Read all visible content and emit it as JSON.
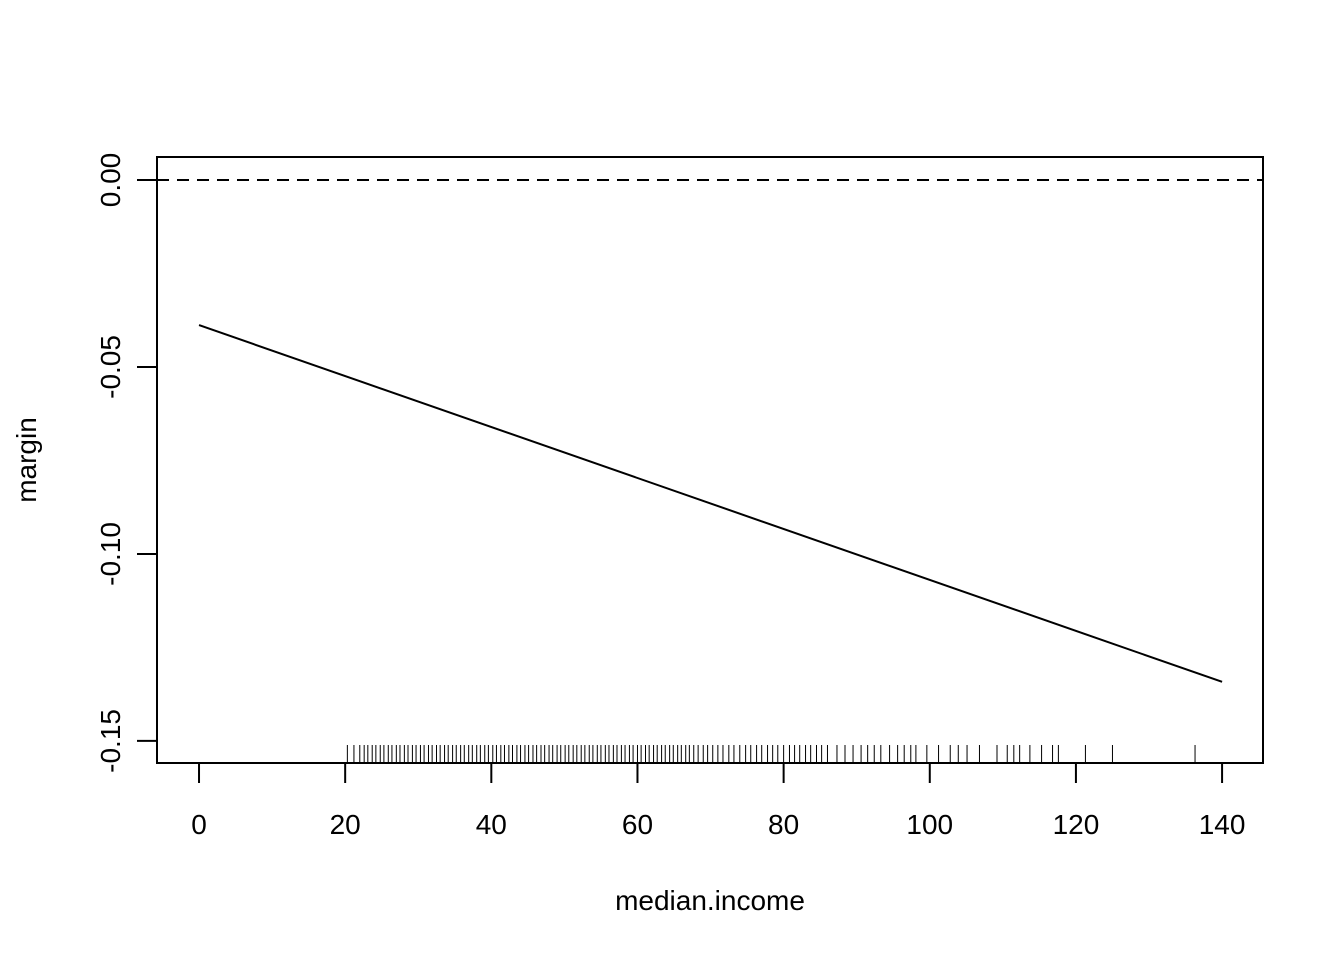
{
  "chart_data": {
    "type": "line",
    "xlabel": "median.income",
    "ylabel": "margin",
    "x": [
      0,
      140
    ],
    "series": [
      {
        "color": "#000000",
        "values": [
          -0.0388,
          -0.1342
        ]
      }
    ],
    "hline": 0,
    "rug": [
      20.3,
      21.2,
      22.0,
      22.6,
      23.1,
      23.7,
      24.2,
      24.8,
      25.3,
      25.9,
      26.4,
      27.0,
      27.5,
      28.1,
      28.6,
      29.2,
      29.7,
      30.3,
      30.8,
      31.4,
      31.9,
      32.5,
      33.0,
      33.6,
      34.1,
      34.7,
      35.2,
      35.8,
      36.3,
      36.9,
      37.4,
      38.0,
      38.5,
      39.1,
      39.6,
      40.2,
      40.7,
      41.3,
      41.8,
      42.4,
      42.9,
      43.5,
      44.0,
      44.6,
      45.1,
      45.7,
      46.2,
      46.8,
      47.3,
      47.9,
      48.4,
      49.0,
      49.5,
      50.1,
      50.6,
      51.2,
      51.7,
      52.3,
      52.8,
      53.4,
      53.9,
      54.5,
      55.0,
      55.6,
      56.1,
      56.7,
      57.2,
      57.8,
      58.3,
      58.9,
      59.4,
      60.0,
      60.5,
      61.1,
      61.6,
      62.2,
      62.7,
      63.3,
      63.8,
      64.4,
      64.9,
      65.5,
      66.0,
      66.6,
      67.1,
      67.7,
      68.3,
      69.0,
      69.6,
      70.3,
      71.0,
      71.7,
      72.5,
      73.2,
      74.0,
      74.8,
      75.5,
      76.3,
      77.0,
      77.8,
      78.5,
      79.2,
      80.0,
      80.8,
      81.5,
      82.2,
      83.0,
      83.7,
      84.5,
      85.2,
      86.0,
      87.3,
      88.4,
      89.5,
      90.6,
      91.5,
      92.4,
      93.3,
      94.5,
      95.6,
      96.5,
      97.4,
      98.1,
      99.6,
      101.2,
      102.8,
      103.9,
      105.1,
      106.8,
      109.2,
      110.6,
      111.5,
      112.3,
      113.7,
      115.3,
      116.8,
      117.6,
      121.3,
      125.0,
      136.3
    ],
    "xlim": [
      -5.75,
      145.6
    ],
    "ylim": [
      -0.1559,
      0.00615
    ],
    "xticks": [
      0,
      20,
      40,
      60,
      80,
      100,
      120,
      140
    ],
    "yticks": [
      {
        "value": -0.15,
        "label": "-0.15"
      },
      {
        "value": -0.1,
        "label": "-0.10"
      },
      {
        "value": -0.05,
        "label": "-0.05"
      },
      {
        "value": 0,
        "label": "0.00"
      }
    ]
  }
}
